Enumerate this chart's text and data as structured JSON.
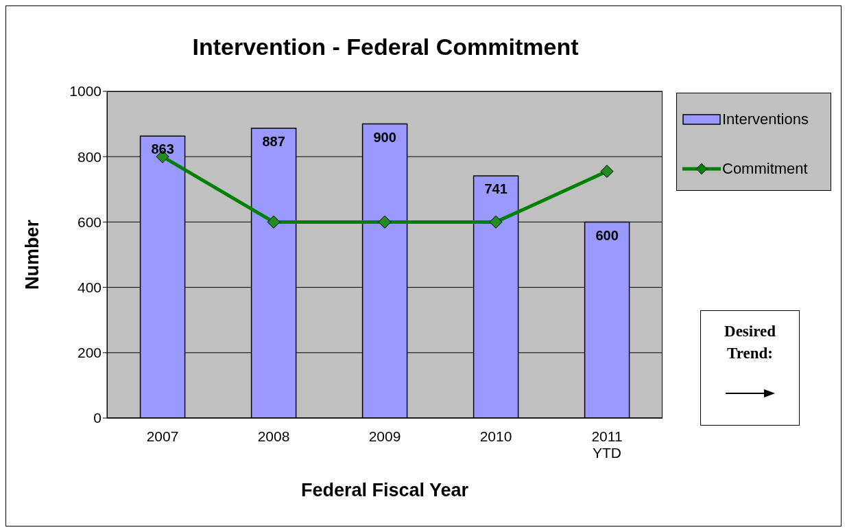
{
  "chart_data": {
    "type": "bar",
    "title": "Intervention - Federal Commitment",
    "xlabel": "Federal Fiscal Year",
    "ylabel": "Number",
    "categories": [
      "2007",
      "2008",
      "2009",
      "2010",
      "2011 YTD"
    ],
    "series": [
      {
        "name": "Interventions",
        "color": "#9999ff",
        "values": [
          863,
          887,
          900,
          741,
          600
        ],
        "value_labels": [
          "863",
          "887",
          "900",
          "741",
          "600"
        ]
      },
      {
        "name": "Commitment",
        "type": "line",
        "color": "#008000",
        "values": [
          800,
          600,
          600,
          600,
          755
        ],
        "marker": "diamond"
      }
    ],
    "ylim": [
      0,
      1000
    ],
    "yticks": [
      0,
      200,
      400,
      600,
      800,
      1000
    ],
    "grid": "y",
    "legend": "right",
    "annotations": [
      "Desired Trend:"
    ]
  }
}
